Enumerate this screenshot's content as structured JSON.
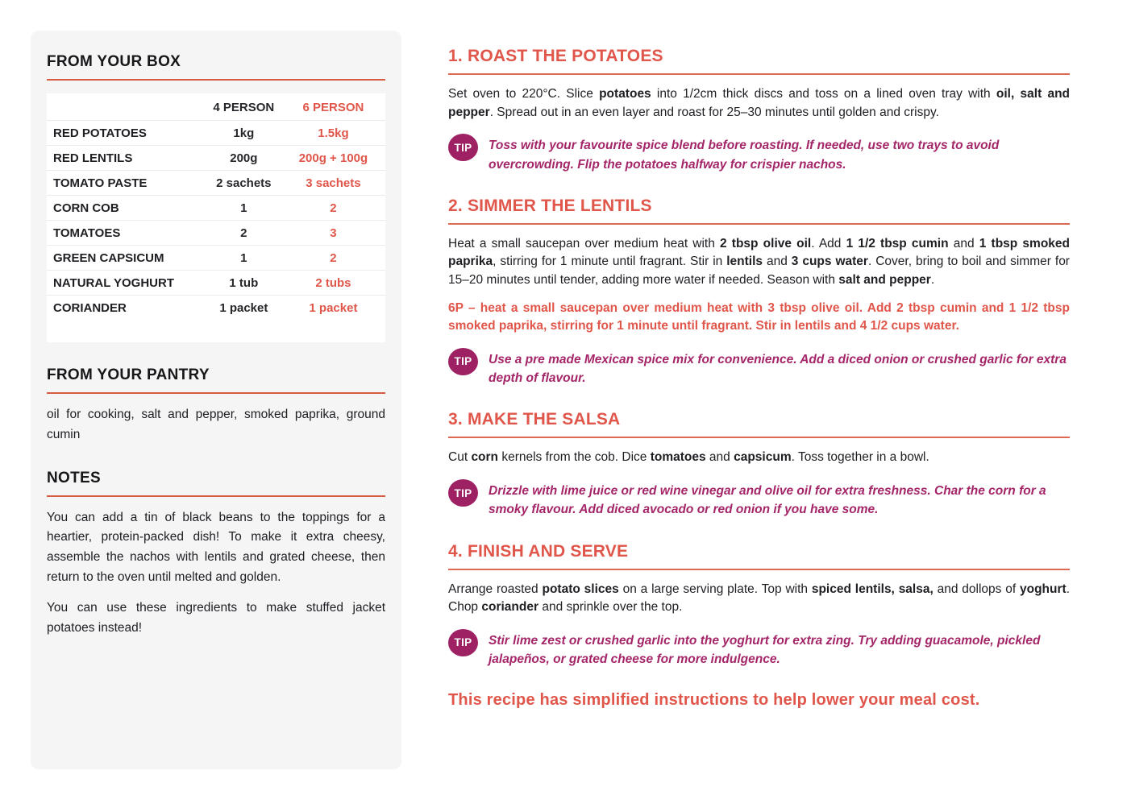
{
  "colors": {
    "accent_orange": "#E0564A",
    "rule_orange": "#D75B42",
    "tip_badge_bg": "#9E2164",
    "tip_text_magenta": "#A42568",
    "text_dark": "#1E1E23",
    "sidebar_bg": "#F5F5F6"
  },
  "tip_label": "TIP",
  "sidebar": {
    "box": {
      "title": "FROM YOUR BOX",
      "table": {
        "col_four": "4 PERSON",
        "col_six": "6 PERSON",
        "rows": [
          {
            "name": "RED POTATOES",
            "four": "1kg",
            "six": "1.5kg"
          },
          {
            "name": "RED LENTILS",
            "four": "200g",
            "six": "200g + 100g"
          },
          {
            "name": "TOMATO PASTE",
            "four": "2 sachets",
            "six": "3 sachets"
          },
          {
            "name": "CORN COB",
            "four": "1",
            "six": "2"
          },
          {
            "name": "TOMATOES",
            "four": "2",
            "six": "3"
          },
          {
            "name": "GREEN CAPSICUM",
            "four": "1",
            "six": "2"
          },
          {
            "name": "NATURAL YOGHURT",
            "four": "1 tub",
            "six": "2 tubs"
          },
          {
            "name": "CORIANDER",
            "four": "1 packet",
            "six": "1 packet"
          }
        ]
      }
    },
    "pantry": {
      "title": "FROM YOUR PANTRY",
      "text": "oil for cooking, salt and pepper, smoked paprika, ground cumin"
    },
    "notes": {
      "title": "NOTES",
      "paragraph1": "You can add a tin of black beans to the toppings for a heartier, protein-packed dish! To make it extra cheesy, assemble the nachos with lentils and grated cheese, then return to the oven until melted and golden.",
      "paragraph2": "You can use these ingredients to make stuffed jacket potatoes instead!"
    }
  },
  "steps": [
    {
      "title": "1. ROAST THE POTATOES",
      "body": [
        {
          "t": "Set oven to 220°C. Slice "
        },
        {
          "t": "potatoes",
          "b": true
        },
        {
          "t": " into 1/2cm thick discs and toss on a lined oven tray with "
        },
        {
          "t": "oil, salt and pepper",
          "b": true
        },
        {
          "t": ". Spread out in an even layer and roast for 25–30 minutes until golden and crispy."
        }
      ],
      "tip": "Toss with your favourite spice blend before roasting. If needed, use two trays to avoid overcrowding. Flip the potatoes halfway for crispier nachos."
    },
    {
      "title": "2. SIMMER THE LENTILS",
      "body": [
        {
          "t": "Heat a small saucepan over medium heat with "
        },
        {
          "t": "2 tbsp olive oil",
          "b": true
        },
        {
          "t": ". Add "
        },
        {
          "t": "1 1/2 tbsp cumin",
          "b": true
        },
        {
          "t": " and "
        },
        {
          "t": "1 tbsp smoked paprika",
          "b": true
        },
        {
          "t": ", stirring for 1 minute until fragrant. Stir in "
        },
        {
          "t": "lentils",
          "b": true
        },
        {
          "t": " and "
        },
        {
          "t": "3 cups water",
          "b": true
        },
        {
          "t": ". Cover, bring to boil and simmer for 15–20 minutes until tender, adding more water if needed. Season with "
        },
        {
          "t": "salt and pepper",
          "b": true
        },
        {
          "t": "."
        }
      ],
      "six_p": "6P – heat a small saucepan over medium heat with 3 tbsp olive oil. Add 2 tbsp cumin and 1 1/2 tbsp smoked paprika, stirring for 1 minute until fragrant. Stir in lentils and 4 1/2 cups water.",
      "tip": "Use a pre made Mexican spice mix for convenience. Add a diced onion or crushed garlic for extra depth of flavour."
    },
    {
      "title": "3. MAKE THE SALSA",
      "body": [
        {
          "t": "Cut "
        },
        {
          "t": "corn",
          "b": true
        },
        {
          "t": " kernels from the cob. Dice "
        },
        {
          "t": "tomatoes",
          "b": true
        },
        {
          "t": " and "
        },
        {
          "t": "capsicum",
          "b": true
        },
        {
          "t": ". Toss together in a bowl."
        }
      ],
      "tip": "Drizzle with lime juice or red wine vinegar and olive oil for extra freshness. Char the corn for a smoky flavour. Add diced avocado or red onion if you have some."
    },
    {
      "title": "4. FINISH AND SERVE",
      "body": [
        {
          "t": "Arrange roasted "
        },
        {
          "t": "potato slices",
          "b": true
        },
        {
          "t": " on a large serving plate. Top with "
        },
        {
          "t": "spiced lentils, salsa,",
          "b": true
        },
        {
          "t": " and dollops of "
        },
        {
          "t": "yoghurt",
          "b": true
        },
        {
          "t": ". Chop "
        },
        {
          "t": "coriander",
          "b": true
        },
        {
          "t": " and sprinkle over the top."
        }
      ],
      "tip": "Stir lime zest or crushed garlic into the yoghurt for extra zing. Try adding guacamole, pickled jalapeños, or grated cheese for more indulgence."
    }
  ],
  "footer": "This recipe has simplified instructions to help lower your meal cost."
}
